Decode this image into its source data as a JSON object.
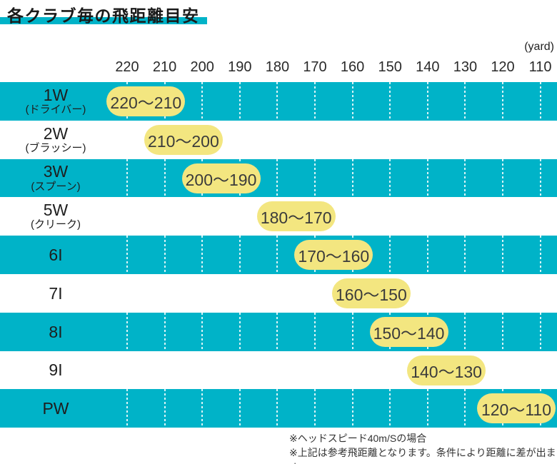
{
  "title": "各クラブ毎の飛距離目安",
  "unit_label": "(yard)",
  "colors": {
    "cyan": "#00B3C8",
    "pill_yellow": "#F3E680",
    "pill_text": "#3B3B3B",
    "note_text": "#333333"
  },
  "footnotes": [
    "※ヘッドスピード40m/Sの場合",
    "※上記は参考飛距離となります。条件により距離に差が出ます。"
  ],
  "chart_data": {
    "type": "bar",
    "subtype": "horizontal-range",
    "title": "各クラブ毎の飛距離目安",
    "unit": "yard",
    "x_ticks": [
      220,
      210,
      200,
      190,
      180,
      170,
      160,
      150,
      140,
      130,
      120,
      110
    ],
    "x_axis_reversed": true,
    "grid": "dotted-vertical-on-cyan-rows",
    "rows": [
      {
        "club": "1W",
        "club_sub": "(ドライバー)",
        "from": 220,
        "to": 210,
        "range_label": "220〜210"
      },
      {
        "club": "2W",
        "club_sub": "(ブラッシー)",
        "from": 210,
        "to": 200,
        "range_label": "210〜200"
      },
      {
        "club": "3W",
        "club_sub": "(スプーン)",
        "from": 200,
        "to": 190,
        "range_label": "200〜190"
      },
      {
        "club": "5W",
        "club_sub": "(クリーク)",
        "from": 180,
        "to": 170,
        "range_label": "180〜170"
      },
      {
        "club": "6I",
        "club_sub": "",
        "from": 170,
        "to": 160,
        "range_label": "170〜160"
      },
      {
        "club": "7I",
        "club_sub": "",
        "from": 160,
        "to": 150,
        "range_label": "160〜150"
      },
      {
        "club": "8I",
        "club_sub": "",
        "from": 150,
        "to": 140,
        "range_label": "150〜140"
      },
      {
        "club": "9I",
        "club_sub": "",
        "from": 140,
        "to": 130,
        "range_label": "140〜130"
      },
      {
        "club": "PW",
        "club_sub": "",
        "from": 120,
        "to": 110,
        "range_label": "120〜110"
      }
    ]
  }
}
